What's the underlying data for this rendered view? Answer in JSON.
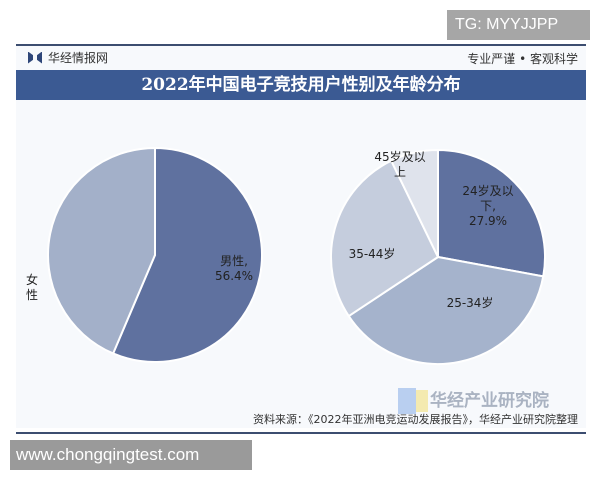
{
  "watermark_top": "TG: MYYJJPP",
  "watermark_bottom": "www.chongqingtest.com",
  "header": {
    "brand": "华经情报网",
    "slogan": "专业严谨 • 客观科学"
  },
  "chart_data": [
    {
      "type": "pie",
      "title": "2022年中国电子竞技用户性别及年龄分布",
      "slices": [
        {
          "label": "男性",
          "value": 56.4,
          "value_label": "56.4%",
          "color": "#5f719f"
        },
        {
          "label": "女性",
          "value": 43.6,
          "color": "#a3b0c9"
        }
      ]
    },
    {
      "type": "pie",
      "slices": [
        {
          "label": "24岁及以下",
          "value": 27.9,
          "value_label": "27.9%",
          "color": "#5f719f"
        },
        {
          "label": "25-34岁",
          "value": 37.8,
          "color": "#a5b3cc"
        },
        {
          "label": "35-44岁",
          "value": 27.1,
          "color": "#c5cddd"
        },
        {
          "label": "45岁及以上",
          "value": 7.2,
          "color": "#dfe3ec"
        }
      ]
    }
  ],
  "footer": {
    "source": "资料来源：《2022年亚洲电竞运动发展报告》，华经产业研究院整理",
    "watermark_logo": "华经产业研究院"
  }
}
